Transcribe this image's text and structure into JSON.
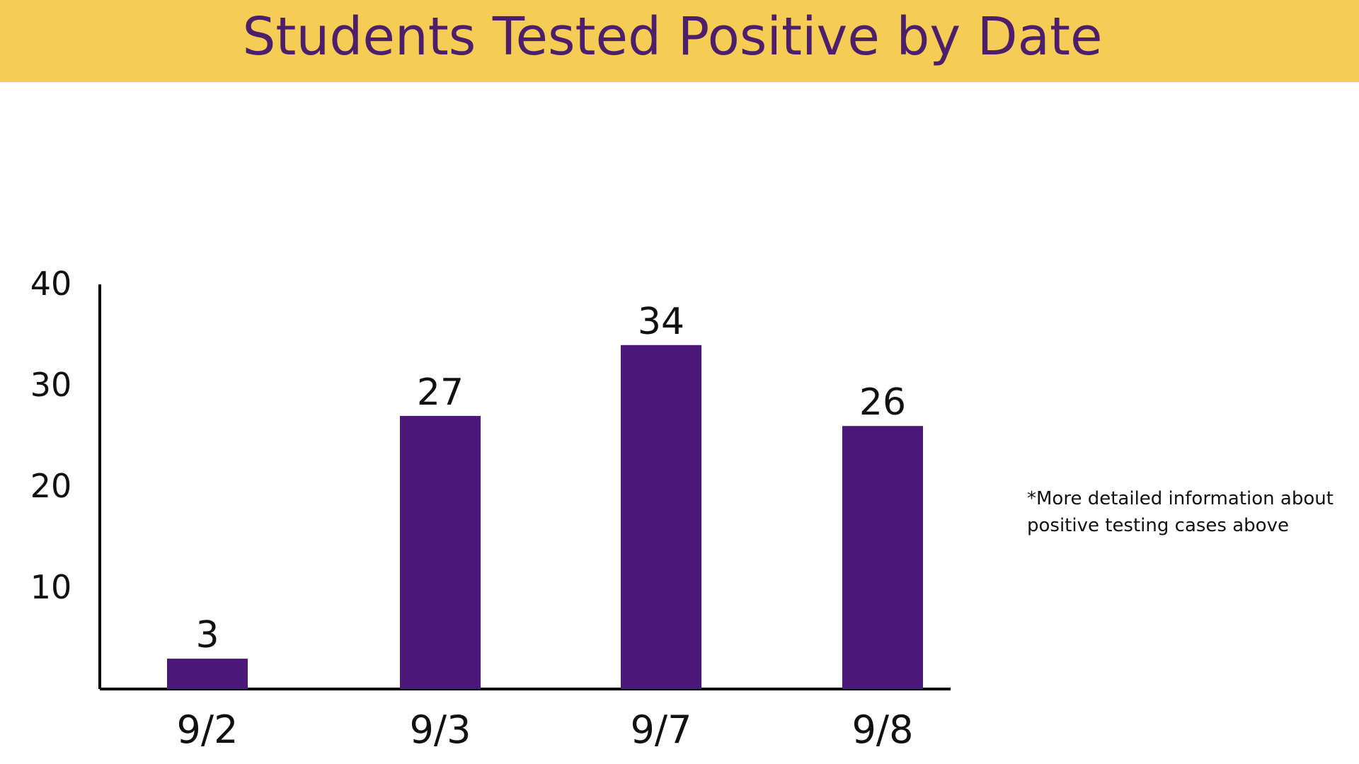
{
  "title": "Students Tested Positive by Date",
  "note": {
    "line1": "*More detailed information about",
    "line2": "positive testing cases above"
  },
  "colors": {
    "banner": "#F5CD55",
    "title": "#4C1E6B",
    "bar": "#4A1878",
    "axis": "#000000"
  },
  "chart_data": {
    "type": "bar",
    "title": "Students Tested Positive by Date",
    "xlabel": "",
    "ylabel": "",
    "categories": [
      "9/2",
      "9/3",
      "9/7",
      "9/8"
    ],
    "values": [
      3,
      27,
      34,
      26
    ],
    "ylim": [
      0,
      40
    ],
    "yticks": [
      10,
      20,
      30,
      40
    ],
    "grid": false,
    "legend": "none",
    "data_labels": true
  }
}
